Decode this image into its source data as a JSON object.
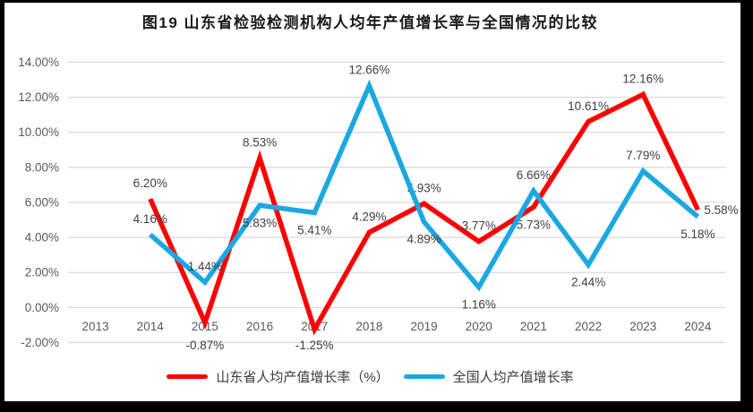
{
  "title": "图19  山东省检验检测机构人均年产值增长率与全国情况的比较",
  "colors": {
    "frame": "#000000",
    "background": "#FFFFFF",
    "gridline": "#D9D9D9",
    "axis_text": "#595959",
    "label_text": "#404040",
    "title_text": "#1A1A1A"
  },
  "chart_data": {
    "type": "line",
    "categories": [
      "2013",
      "2014",
      "2015",
      "2016",
      "2017",
      "2018",
      "2019",
      "2020",
      "2021",
      "2022",
      "2023",
      "2024"
    ],
    "series": [
      {
        "name": "山东省人均产值增长率（%）",
        "color": "#FE0000",
        "values": [
          null,
          6.2,
          -0.87,
          8.53,
          -1.25,
          4.29,
          5.93,
          3.77,
          5.73,
          10.61,
          12.16,
          5.58
        ],
        "labels": [
          "",
          "6.20%",
          "-0.87%",
          "8.53%",
          "-1.25%",
          "4.29%",
          "5.93%",
          "3.77%",
          "5.73%",
          "10.61%",
          "12.16%",
          "5.58%"
        ],
        "label_sides": [
          null,
          "above",
          "axis-below",
          "above",
          "axis-below",
          "above",
          "above",
          "above",
          "below",
          "above",
          "above",
          "right"
        ]
      },
      {
        "name": "全国人均产值增长率",
        "color": "#1BA8E2",
        "values": [
          null,
          4.16,
          1.44,
          5.83,
          5.41,
          12.66,
          4.89,
          1.16,
          6.66,
          2.44,
          7.79,
          5.18
        ],
        "labels": [
          "",
          "4.16%",
          "1.44%",
          "5.83%",
          "5.41%",
          "12.66%",
          "4.89%",
          "1.16%",
          "6.66%",
          "2.44%",
          "7.79%",
          "5.18%"
        ],
        "label_sides": [
          null,
          "above",
          "above",
          "below",
          "below",
          "above",
          "below",
          "below",
          "above",
          "below",
          "above",
          "below"
        ]
      }
    ],
    "ylim": [
      -2,
      14
    ],
    "ytick_step": 2,
    "ytick_labels": [
      "14.00%",
      "12.00%",
      "10.00%",
      "8.00%",
      "6.00%",
      "4.00%",
      "2.00%",
      "0.00%",
      "-2.00%"
    ],
    "grid": true,
    "data_labels": true,
    "legend_position": "bottom"
  }
}
